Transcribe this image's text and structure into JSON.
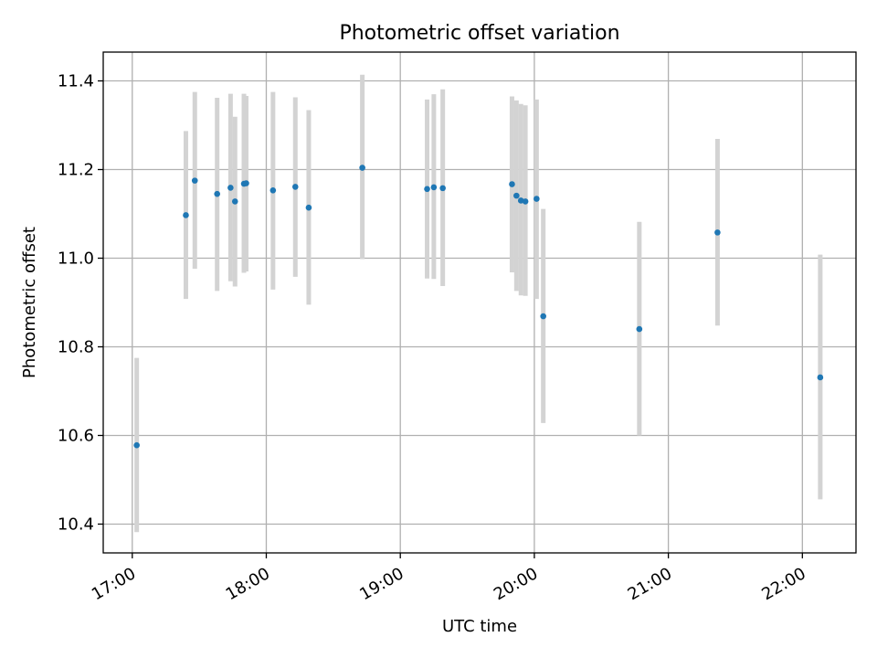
{
  "chart_data": {
    "type": "scatter",
    "title": "Photometric offset variation",
    "xlabel": "UTC time",
    "ylabel": "Photometric offset",
    "x_ticks": [
      "17:00",
      "18:00",
      "19:00",
      "20:00",
      "21:00",
      "22:00"
    ],
    "y_ticks": [
      "10.4",
      "10.6",
      "10.8",
      "11.0",
      "11.2",
      "11.4"
    ],
    "xlim": [
      "16:47",
      "22:24"
    ],
    "ylim": [
      10.335,
      11.465
    ],
    "grid": true,
    "colors": {
      "points": "#1f77b4",
      "errorbars": "#d3d3d3",
      "grid": "#b0b0b0"
    },
    "points": [
      {
        "time": "17:02",
        "y": 10.578,
        "low": 10.382,
        "high": 10.775
      },
      {
        "time": "17:24",
        "y": 11.097,
        "low": 10.908,
        "high": 11.287
      },
      {
        "time": "17:28",
        "y": 11.175,
        "low": 10.976,
        "high": 11.375
      },
      {
        "time": "17:38",
        "y": 11.145,
        "low": 10.926,
        "high": 11.362
      },
      {
        "time": "17:44",
        "y": 11.159,
        "low": 10.948,
        "high": 11.371
      },
      {
        "time": "17:46",
        "y": 11.128,
        "low": 10.936,
        "high": 11.319
      },
      {
        "time": "17:50",
        "y": 11.168,
        "low": 10.967,
        "high": 11.371
      },
      {
        "time": "17:51",
        "y": 11.169,
        "low": 10.97,
        "high": 11.366
      },
      {
        "time": "18:03",
        "y": 11.153,
        "low": 10.929,
        "high": 11.375
      },
      {
        "time": "18:13",
        "y": 11.161,
        "low": 10.958,
        "high": 11.363
      },
      {
        "time": "18:19",
        "y": 11.114,
        "low": 10.895,
        "high": 11.334
      },
      {
        "time": "18:43",
        "y": 11.204,
        "low": 10.998,
        "high": 11.414
      },
      {
        "time": "19:12",
        "y": 11.156,
        "low": 10.954,
        "high": 11.358
      },
      {
        "time": "19:15",
        "y": 11.16,
        "low": 10.953,
        "high": 11.37
      },
      {
        "time": "19:19",
        "y": 11.158,
        "low": 10.937,
        "high": 11.381
      },
      {
        "time": "19:50",
        "y": 11.167,
        "low": 10.968,
        "high": 11.365
      },
      {
        "time": "19:52",
        "y": 11.141,
        "low": 10.926,
        "high": 11.356
      },
      {
        "time": "19:54",
        "y": 11.13,
        "low": 10.916,
        "high": 11.348
      },
      {
        "time": "19:56",
        "y": 11.128,
        "low": 10.915,
        "high": 11.345
      },
      {
        "time": "20:01",
        "y": 11.134,
        "low": 10.908,
        "high": 11.358
      },
      {
        "time": "20:04",
        "y": 10.869,
        "low": 10.628,
        "high": 11.111
      },
      {
        "time": "20:47",
        "y": 10.84,
        "low": 10.6,
        "high": 11.082
      },
      {
        "time": "21:22",
        "y": 11.058,
        "low": 10.848,
        "high": 11.269
      },
      {
        "time": "22:08",
        "y": 10.731,
        "low": 10.456,
        "high": 11.008
      }
    ]
  }
}
